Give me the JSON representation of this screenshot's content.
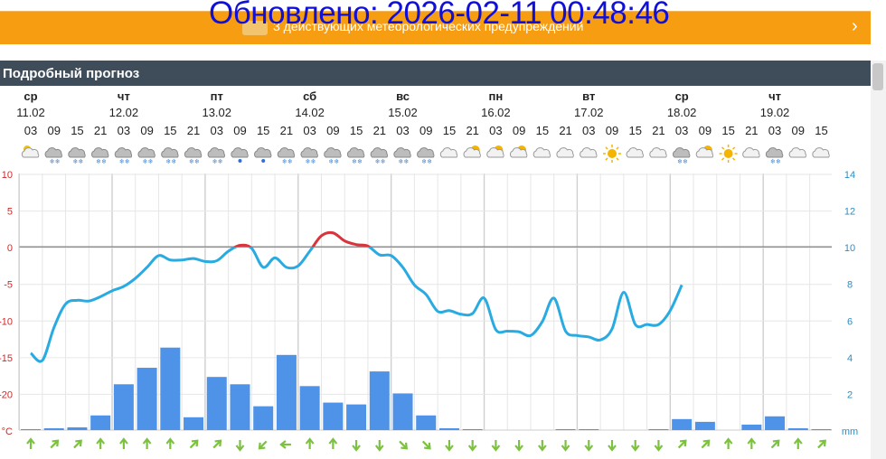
{
  "banner": {
    "updated_text": "Обновлено: 2026-02-11 00:48:46",
    "warning_text": "3 действующих метеорологических предупреждений",
    "chevron": "›"
  },
  "section": {
    "title": "Подробный прогноз"
  },
  "days": [
    {
      "name": "ср",
      "date": "11.02"
    },
    {
      "name": "чт",
      "date": "12.02"
    },
    {
      "name": "пт",
      "date": "13.02"
    },
    {
      "name": "сб",
      "date": "14.02"
    },
    {
      "name": "вс",
      "date": "15.02"
    },
    {
      "name": "пн",
      "date": "16.02"
    },
    {
      "name": "вт",
      "date": "17.02"
    },
    {
      "name": "ср",
      "date": "18.02"
    },
    {
      "name": "чт",
      "date": "19.02"
    }
  ],
  "hours": [
    "03",
    "09",
    "15",
    "21",
    "03",
    "09",
    "15",
    "21",
    "03",
    "09",
    "15",
    "21",
    "03",
    "09",
    "15",
    "21",
    "03",
    "09",
    "15",
    "21",
    "03",
    "09",
    "15",
    "21",
    "03",
    "09",
    "15",
    "21",
    "03",
    "09",
    "15",
    "21",
    "03",
    "09",
    "15"
  ],
  "icons": [
    "moon-partly-cloudy-icon",
    "cloud-snow-icon",
    "cloud-snow-icon",
    "cloud-snow-icon",
    "cloud-snow-icon",
    "cloud-snow-icon",
    "cloud-snow-icon",
    "cloud-snow-icon",
    "cloud-snow-icon",
    "cloud-rain-icon",
    "cloud-rain-icon",
    "cloud-snow-icon",
    "cloud-snow-icon",
    "cloud-snow-icon",
    "cloud-snow-icon",
    "cloud-snow-icon",
    "cloud-snow-icon",
    "cloud-snow-icon",
    "cloud-icon",
    "sun-cloud-icon",
    "sun-cloud-icon",
    "sun-cloud-icon",
    "cloud-icon",
    "cloud-icon",
    "cloud-icon",
    "sun-icon",
    "cloud-icon",
    "cloud-icon",
    "cloud-snow-icon",
    "sun-cloud-icon",
    "sun-icon",
    "cloud-icon",
    "cloud-snow-icon",
    "cloud-icon",
    "cloud-icon"
  ],
  "chart_data": {
    "type": "line",
    "left_axis": {
      "ticks": [
        "10",
        "5",
        "0",
        "-5",
        "-10",
        "-15",
        "-20",
        "°C"
      ],
      "range": [
        -25,
        10
      ],
      "unit": "°C"
    },
    "right_axis": {
      "ticks": [
        "14",
        "12",
        "10",
        "8",
        "6",
        "4",
        "2",
        "mm"
      ],
      "range": [
        0,
        14
      ],
      "unit": "mm"
    },
    "colors": {
      "temp_line": "#29abe2",
      "temp_above_zero": "#d9343c",
      "bars": "#4f93e8",
      "grid": "#e6e6e6",
      "zero_line": "#888888",
      "left_axis_text": "#cc2a2a",
      "right_axis_text": "#2a8fc7",
      "arrows": "#7cc13f"
    },
    "temperature": [
      -14.5,
      -15.5,
      -11.0,
      -7.8,
      -7.3,
      -7.4,
      -6.8,
      -6.0,
      -5.4,
      -4.3,
      -2.8,
      -1.2,
      -1.8,
      -1.8,
      -1.6,
      -2.0,
      -1.9,
      -0.6,
      0.2,
      -0.2,
      -2.8,
      -1.5,
      -2.8,
      -2.6,
      -0.6,
      1.5,
      1.9,
      0.8,
      0.3,
      0.1,
      -1.1,
      -1.2,
      -2.8,
      -5.2,
      -6.5,
      -8.8,
      -8.7,
      -9.2,
      -9.1,
      -7.0,
      -11.3,
      -11.5,
      -11.6,
      -12.1,
      -10.2,
      -7.0,
      -11.5,
      -12.1,
      -12.3,
      -12.7,
      -11.2,
      -6.2,
      -10.6,
      -10.6,
      -10.6,
      -8.7,
      -5.2
    ],
    "precipitation": [
      0.05,
      0.1,
      0.15,
      0.8,
      2.5,
      3.4,
      4.5,
      0.7,
      2.9,
      2.5,
      1.3,
      4.1,
      2.4,
      1.5,
      1.4,
      3.2,
      2.0,
      0.8,
      0.1,
      0.05,
      0.0,
      0.0,
      0.0,
      0.05,
      0.05,
      0.0,
      0.0,
      0.05,
      0.6,
      0.45,
      0.0,
      0.3,
      0.75,
      0.1,
      0.05
    ],
    "wind_directions": [
      "N",
      "NE",
      "NE",
      "N",
      "N",
      "N",
      "N",
      "NE",
      "NE",
      "S",
      "SW",
      "W",
      "N",
      "N",
      "S",
      "S",
      "SE",
      "SE",
      "S",
      "S",
      "S",
      "S",
      "S",
      "S",
      "S",
      "S",
      "S",
      "S",
      "NE",
      "NE",
      "N",
      "N",
      "NE",
      "N",
      "NE"
    ]
  }
}
